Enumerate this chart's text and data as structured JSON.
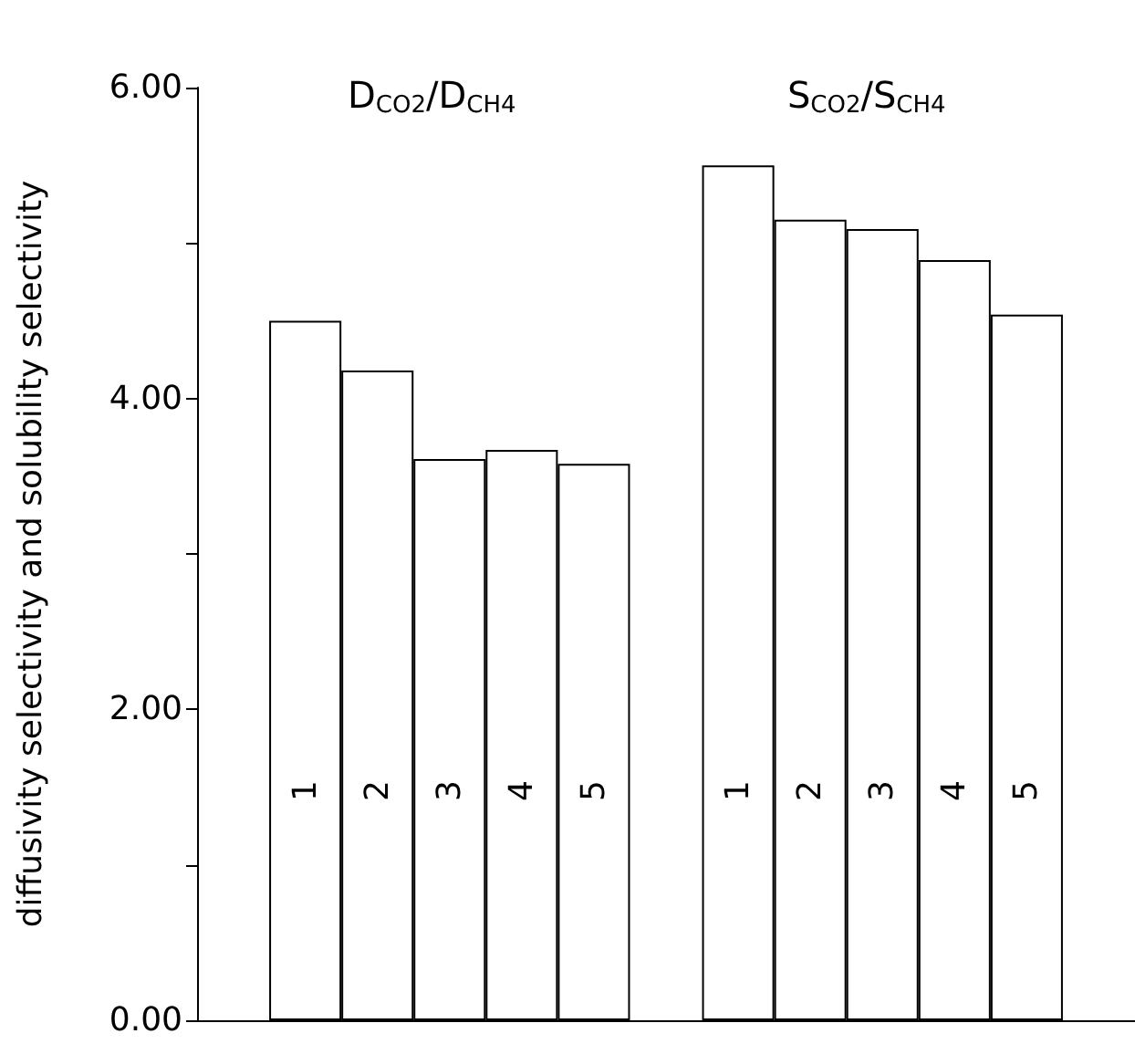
{
  "chart_data": {
    "type": "bar",
    "ylabel": "diffusivity selectivity and solubility selectivity",
    "annotations": [
      "D$_{CO2}$/D$_{CH4}$",
      "S$_{CO2}$/S$_{CH4}$"
    ],
    "categories": [
      null,
      "1",
      "2",
      "3",
      "4",
      "5",
      null,
      "1",
      "2",
      "3",
      "4",
      "5",
      null
    ],
    "values": [
      null,
      4.5,
      4.18,
      3.61,
      3.67,
      3.58,
      null,
      5.5,
      5.15,
      5.09,
      4.89,
      4.54,
      null
    ],
    "color": "#ffffff",
    "ylim": [
      0,
      6
    ],
    "yticks": [
      {
        "value": 0,
        "label": "0.00"
      },
      {
        "value": 1,
        "label": null
      },
      {
        "value": 2,
        "label": "2.00"
      },
      {
        "value": 3,
        "label": null
      },
      {
        "value": 4,
        "label": "4.00"
      },
      {
        "value": 5,
        "label": null
      },
      {
        "value": 6,
        "label": "6.00"
      }
    ],
    "grid": false
  }
}
